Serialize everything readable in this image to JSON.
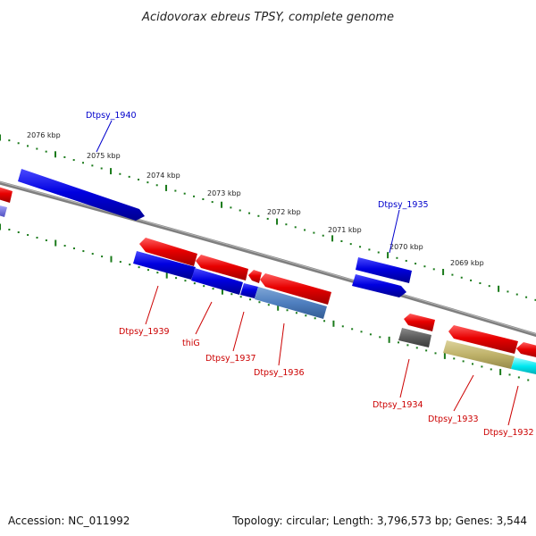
{
  "title": "Acidovorax ebreus TPSY, complete genome",
  "footer": {
    "accession": "Accession: NC_011992",
    "topology": "Topology: circular; Length: 3,796,573 bp; Genes: 3,544"
  },
  "colors": {
    "backbone": "#808080",
    "tick": "#1a7a1a",
    "label_forward": "#0000cc",
    "label_reverse": "#cc0000"
  },
  "scale_labels": [
    "2076 kbp",
    "2075 kbp",
    "2074 kbp",
    "2073 kbp",
    "2072 kbp",
    "2071 kbp",
    "2070 kbp",
    "2069 kbp"
  ],
  "gene_labels": [
    {
      "text": "Dtpsy_1940",
      "strand": "forward"
    },
    {
      "text": "Dtpsy_1935",
      "strand": "forward"
    },
    {
      "text": "Dtpsy_1939",
      "strand": "reverse"
    },
    {
      "text": "thiG",
      "strand": "reverse"
    },
    {
      "text": "Dtpsy_1937",
      "strand": "reverse"
    },
    {
      "text": "Dtpsy_1936",
      "strand": "reverse"
    },
    {
      "text": "Dtpsy_1934",
      "strand": "reverse"
    },
    {
      "text": "Dtpsy_1933",
      "strand": "reverse"
    },
    {
      "text": "Dtpsy_1932",
      "strand": "reverse"
    }
  ]
}
